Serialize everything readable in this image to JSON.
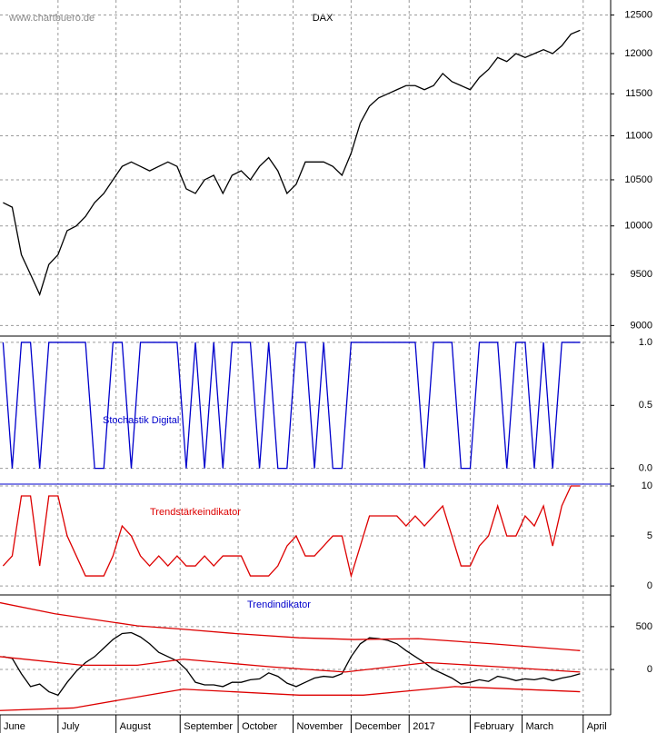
{
  "chart_data": [
    {
      "type": "line",
      "title": "DAX",
      "watermark": "www.chartbuero.de",
      "log_scale": true,
      "grid": true,
      "x": [
        1,
        4,
        7,
        10,
        13,
        16,
        19,
        22,
        25,
        28,
        31,
        34,
        37,
        40,
        43,
        46,
        49,
        52,
        55,
        58,
        61,
        64,
        67,
        70,
        73,
        76,
        79,
        82,
        85,
        88,
        91,
        94,
        97,
        100,
        103,
        106,
        109,
        112,
        115,
        118,
        121,
        124,
        127,
        130,
        133,
        136,
        139,
        142,
        145,
        148,
        151,
        154,
        157,
        160,
        163,
        166,
        169,
        172,
        175,
        178,
        181,
        184,
        187,
        190
      ],
      "xlim": [
        0,
        200
      ],
      "xticks": [
        {
          "value": 0,
          "label": "June"
        },
        {
          "value": 19,
          "label": "July"
        },
        {
          "value": 38,
          "label": "August"
        },
        {
          "value": 59,
          "label": "September"
        },
        {
          "value": 78,
          "label": "October"
        },
        {
          "value": 96,
          "label": "November"
        },
        {
          "value": 115,
          "label": "December"
        },
        {
          "value": 134,
          "label": "2017"
        },
        {
          "value": 154,
          "label": "February"
        },
        {
          "value": 171,
          "label": "March"
        },
        {
          "value": 191,
          "label": "April"
        }
      ],
      "ylim": [
        8900,
        12700
      ],
      "yticks": [
        12500,
        12000,
        11500,
        11000,
        10500,
        10000,
        9500,
        9000
      ],
      "series": [
        {
          "color": "#000000",
          "values": [
            10250,
            10200,
            9700,
            9500,
            9300,
            9600,
            9700,
            9950,
            10000,
            10100,
            10250,
            10350,
            10500,
            10650,
            10700,
            10650,
            10600,
            10650,
            10700,
            10650,
            10400,
            10350,
            10500,
            10550,
            10350,
            10550,
            10600,
            10500,
            10650,
            10750,
            10600,
            10350,
            10450,
            10700,
            10700,
            10700,
            10650,
            10550,
            10800,
            11150,
            11350,
            11450,
            11500,
            11550,
            11600,
            11600,
            11550,
            11600,
            11750,
            11650,
            11600,
            11550,
            11700,
            11800,
            11950,
            11900,
            12000,
            11950,
            12000,
            12050,
            12000,
            12100,
            12250,
            12300
          ]
        }
      ]
    },
    {
      "type": "line",
      "title": "Stochastik Digital",
      "title_color": "#0000cc",
      "grid": true,
      "ylim": [
        -0.125,
        1.05
      ],
      "yticks": [
        {
          "value": 1,
          "label": "1.0"
        },
        {
          "value": 0.5,
          "label": "0.5"
        },
        {
          "value": 0,
          "label": "0.0"
        }
      ],
      "series": [
        {
          "color": "#0000cc",
          "values": [
            1,
            0,
            1,
            1,
            0,
            1,
            1,
            1,
            1,
            1,
            0,
            0,
            1,
            1,
            0,
            1,
            1,
            1,
            1,
            1,
            0,
            1,
            0,
            1,
            0,
            1,
            1,
            1,
            0,
            1,
            0,
            0,
            1,
            1,
            0,
            1,
            0,
            0,
            1,
            1,
            1,
            1,
            1,
            1,
            1,
            1,
            0,
            1,
            1,
            1,
            0,
            0,
            1,
            1,
            1,
            0,
            1,
            1,
            0,
            1,
            0,
            1,
            1,
            1
          ]
        }
      ]
    },
    {
      "type": "line",
      "title": "Trendstärkeindikator",
      "title_color": "#dd0000",
      "grid": true,
      "ylim": [
        -0.9,
        10
      ],
      "yticks": [
        10,
        5,
        0
      ],
      "series": [
        {
          "color": "#dd0000",
          "values": [
            2,
            3,
            9,
            9,
            2,
            9,
            9,
            5,
            3,
            1,
            1,
            1,
            3,
            6,
            5,
            3,
            2,
            3,
            2,
            3,
            2,
            2,
            3,
            2,
            3,
            3,
            3,
            1,
            1,
            1,
            2,
            4,
            5,
            3,
            3,
            4,
            5,
            5,
            1,
            4,
            7,
            7,
            7,
            7,
            6,
            7,
            6,
            7,
            8,
            5,
            2,
            2,
            4,
            5,
            8,
            5,
            5,
            7,
            6,
            8,
            4,
            8,
            10,
            10
          ]
        }
      ]
    },
    {
      "type": "line",
      "title": "Trendindikator",
      "title_color": "#0000cc",
      "grid": true,
      "ylim": [
        -530,
        860
      ],
      "yticks": [
        500,
        0
      ],
      "series": [
        {
          "color": "#000000",
          "values": [
            150,
            130,
            -50,
            -200,
            -170,
            -260,
            -300,
            -150,
            -20,
            80,
            150,
            250,
            350,
            420,
            430,
            380,
            300,
            200,
            150,
            100,
            0,
            -150,
            -180,
            -180,
            -200,
            -150,
            -150,
            -120,
            -110,
            -40,
            -80,
            -160,
            -200,
            -150,
            -100,
            -80,
            -90,
            -50,
            150,
            300,
            370,
            360,
            340,
            300,
            220,
            150,
            80,
            0,
            -50,
            -100,
            -170,
            -150,
            -120,
            -140,
            -80,
            -100,
            -130,
            -110,
            -120,
            -100,
            -130,
            -100,
            -80,
            -50
          ]
        },
        {
          "color": "#dd0000",
          "x": [
            0,
            18,
            45,
            60,
            77,
            98,
            116,
            137,
            161,
            190
          ],
          "values": [
            780,
            650,
            510,
            470,
            420,
            370,
            350,
            360,
            300,
            220
          ]
        },
        {
          "color": "#dd0000",
          "x": [
            0,
            27,
            45,
            60,
            89,
            113,
            140,
            164,
            190
          ],
          "values": [
            150,
            50,
            50,
            120,
            30,
            -30,
            80,
            30,
            -30
          ]
        },
        {
          "color": "#dd0000",
          "x": [
            0,
            24,
            60,
            98,
            119,
            149,
            190
          ],
          "values": [
            -480,
            -450,
            -230,
            -300,
            -300,
            -200,
            -260
          ]
        }
      ]
    }
  ]
}
